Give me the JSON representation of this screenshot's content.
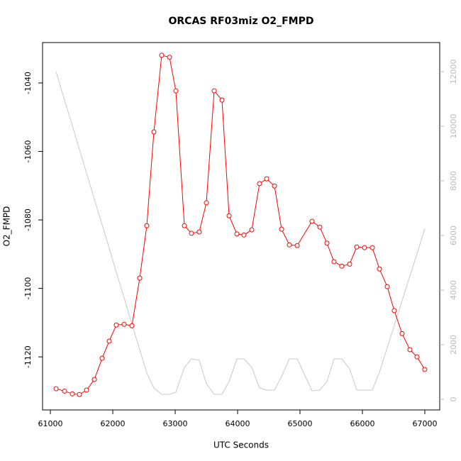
{
  "chart_data": {
    "type": "line",
    "title": "ORCAS RF03miz O2_FMPD",
    "x_label": "UTC Seconds",
    "y_label": "O2_FMPD",
    "x": [
      61091,
      61227,
      61352,
      61466,
      61580,
      61705,
      61830,
      61943,
      62057,
      62182,
      62307,
      62432,
      62545,
      62659,
      62784,
      62909,
      63011,
      63148,
      63261,
      63386,
      63500,
      63625,
      63750,
      63864,
      63989,
      64102,
      64227,
      64352,
      64466,
      64591,
      64705,
      64830,
      64955,
      65193,
      65318,
      65432,
      65545,
      65670,
      65795,
      65909,
      66034,
      66159,
      66273,
      66398,
      66511,
      66636,
      66761,
      66875,
      66999
    ],
    "series": [
      {
        "color": "#ff0000",
        "axis": "y",
        "markers": true,
        "values": [
          -1129.3,
          -1130.0,
          -1130.8,
          -1131.0,
          -1129.7,
          -1126.6,
          -1120.4,
          -1115.4,
          -1110.7,
          -1110.5,
          -1110.9,
          -1097.0,
          -1081.7,
          -1054.3,
          -1031.9,
          -1032.5,
          -1042.3,
          -1081.7,
          -1083.9,
          -1083.5,
          -1075.0,
          -1042.3,
          -1045.0,
          -1078.8,
          -1084.1,
          -1084.4,
          -1082.9,
          -1069.4,
          -1068.0,
          -1070.1,
          -1082.7,
          -1087.3,
          -1087.5,
          -1080.4,
          -1082.1,
          -1086.8,
          -1092.2,
          -1093.5,
          -1092.9,
          -1087.9,
          -1088.1,
          -1088.1,
          -1094.3,
          -1099.5,
          -1106.5,
          -1113.2,
          -1117.9,
          -1120.0,
          -1123.7
        ]
      },
      {
        "color": "#c8c8c8",
        "axis": "y2",
        "markers": false,
        "values": [
          12000,
          10961,
          10026,
          9143,
          8286,
          7325,
          6390,
          5532,
          4649,
          3714,
          2753,
          1818,
          961,
          416,
          182,
          182,
          260,
          1169,
          1480,
          1429,
          571,
          182,
          182,
          649,
          1480,
          1480,
          1169,
          416,
          338,
          338,
          831,
          1480,
          1480,
          312,
          338,
          649,
          1480,
          1480,
          1117,
          338,
          338,
          338,
          987,
          1896,
          2701,
          3610,
          4519,
          5325,
          6260
        ]
      }
    ],
    "xlim": [
      60875,
      67239
    ],
    "xticks": [
      61000,
      62000,
      63000,
      64000,
      65000,
      66000,
      67000
    ],
    "ylim": [
      -1135.5,
      -1028.2
    ],
    "yticks": [
      -1120,
      -1100,
      -1080,
      -1060,
      -1040
    ],
    "y2lim": [
      -390,
      13065
    ],
    "y2ticks": [
      0,
      2000,
      4000,
      6000,
      8000,
      10000,
      12000
    ]
  }
}
